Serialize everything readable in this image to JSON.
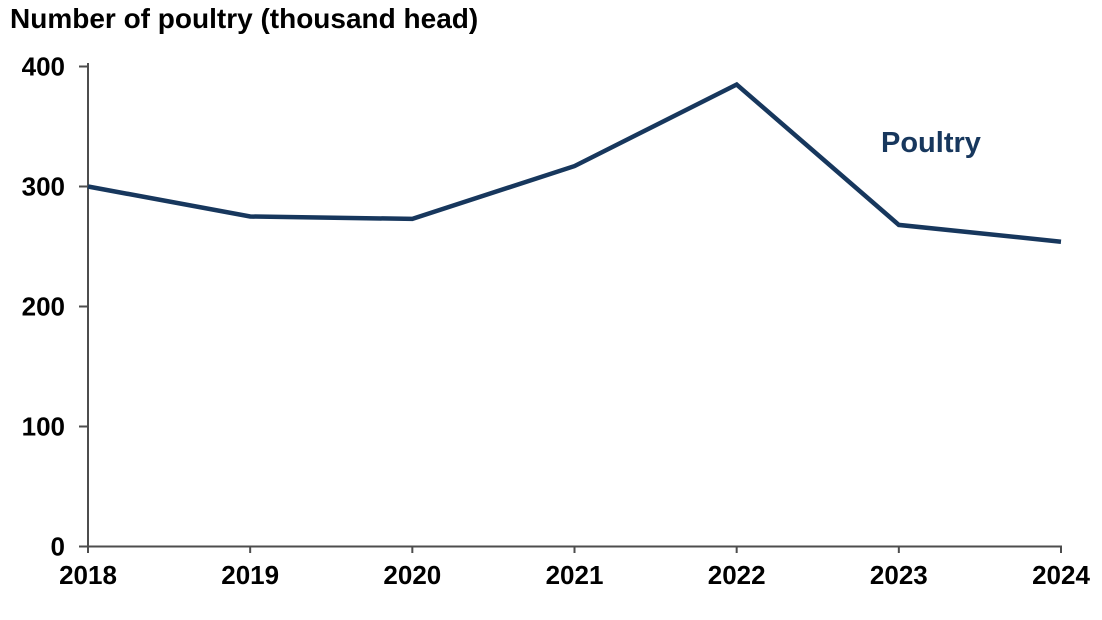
{
  "page": {
    "background": "#FFFFFF"
  },
  "chart_data": {
    "type": "line",
    "title": "Number of poultry (thousand head)",
    "categories": [
      "2018",
      "2019",
      "2020",
      "2021",
      "2022",
      "2023",
      "2024"
    ],
    "series": [
      {
        "name": "Poultry",
        "values": [
          300,
          275,
          273,
          317,
          385,
          268,
          254
        ]
      }
    ],
    "xlabel": "",
    "ylabel": "",
    "ylim": [
      0,
      400
    ],
    "yticks": [
      0,
      100,
      200,
      300,
      400
    ],
    "grid": false,
    "legend_position": "inline-right-of-line",
    "colors": {
      "line": "#17375D",
      "axis": "#4D4D4D",
      "text": "#000000",
      "background": "#FFFFFF"
    }
  }
}
